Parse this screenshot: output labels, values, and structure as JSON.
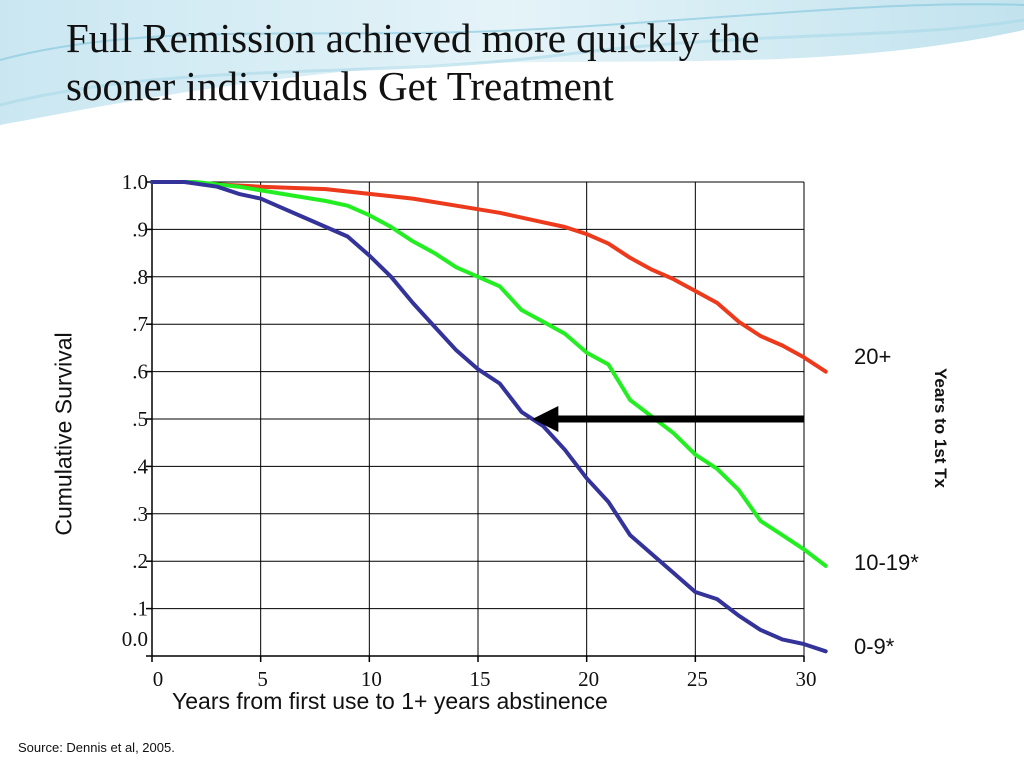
{
  "slide": {
    "title_line1": "Full Remission achieved more quickly the",
    "title_line2": "sooner individuals Get Treatment",
    "source": "Source: Dennis et al, 2005."
  },
  "colors": {
    "background_accent": "#bfe3ef",
    "axis": "#000000",
    "grid": "#000000",
    "arrow": "#000000"
  },
  "chart_data": {
    "type": "line",
    "title": "",
    "xlabel": "Years from first use to 1+ years abstinence",
    "ylabel": "Cumulative Survival",
    "xlim": [
      0,
      30
    ],
    "ylim": [
      0,
      1.0
    ],
    "x_ticks": [
      0,
      5,
      10,
      15,
      20,
      25,
      30
    ],
    "x_tick_labels": [
      "0",
      "5",
      "10",
      "15",
      "20",
      "25",
      "30"
    ],
    "y_ticks": [
      0,
      0.1,
      0.2,
      0.3,
      0.4,
      0.5,
      0.6,
      0.7,
      0.8,
      0.9,
      1.0
    ],
    "y_tick_labels": [
      "0.0",
      ".1",
      ".2",
      ".3",
      ".4",
      ".5",
      ".6",
      ".7",
      ".8",
      ".9",
      "1.0"
    ],
    "grid": true,
    "legend_title": "Years to 1st Tx",
    "legend_placement": "right, labels at line ends",
    "series": [
      {
        "name": "20+",
        "color": "#ee3a1c",
        "x": [
          0,
          1.5,
          3,
          5,
          8,
          10,
          12,
          14,
          16,
          18,
          19,
          20,
          21,
          22,
          23,
          24,
          25,
          26,
          27,
          28,
          29,
          30,
          31
        ],
        "y": [
          1.0,
          1.0,
          0.995,
          0.99,
          0.985,
          0.975,
          0.965,
          0.95,
          0.935,
          0.915,
          0.905,
          0.89,
          0.87,
          0.84,
          0.815,
          0.795,
          0.77,
          0.745,
          0.705,
          0.675,
          0.655,
          0.63,
          0.6
        ]
      },
      {
        "name": "10-19*",
        "color": "#22ee22",
        "x": [
          0,
          2,
          4,
          6,
          8,
          9,
          10,
          11,
          12,
          13,
          14,
          15,
          16,
          17,
          18,
          19,
          20,
          21,
          22,
          23,
          24,
          25,
          26,
          27,
          28,
          29,
          30,
          31
        ],
        "y": [
          1.0,
          1.0,
          0.99,
          0.975,
          0.96,
          0.95,
          0.93,
          0.905,
          0.875,
          0.85,
          0.82,
          0.8,
          0.78,
          0.73,
          0.705,
          0.68,
          0.64,
          0.615,
          0.54,
          0.505,
          0.47,
          0.425,
          0.395,
          0.35,
          0.285,
          0.255,
          0.225,
          0.19
        ]
      },
      {
        "name": "0-9*",
        "color": "#33339a",
        "x": [
          0,
          1.5,
          3,
          4,
          5,
          6,
          7,
          8,
          9,
          10,
          11,
          12,
          13,
          14,
          15,
          16,
          17,
          18,
          19,
          20,
          21,
          22,
          23,
          24,
          25,
          26,
          27,
          28,
          29,
          30,
          31
        ],
        "y": [
          1.0,
          1.0,
          0.99,
          0.975,
          0.965,
          0.945,
          0.925,
          0.905,
          0.885,
          0.845,
          0.8,
          0.745,
          0.695,
          0.645,
          0.605,
          0.575,
          0.515,
          0.485,
          0.435,
          0.375,
          0.325,
          0.255,
          0.215,
          0.175,
          0.135,
          0.12,
          0.085,
          0.055,
          0.035,
          0.025,
          0.01
        ]
      }
    ],
    "annotations": [
      {
        "type": "arrow",
        "from": [
          30,
          0.5
        ],
        "to": [
          17.5,
          0.5
        ],
        "color": "#000000"
      }
    ]
  }
}
